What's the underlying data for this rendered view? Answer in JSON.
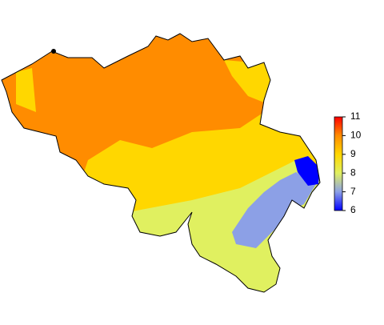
{
  "colorbar": {
    "lim": [
      6,
      11
    ],
    "ticks": [
      6,
      7,
      8,
      9,
      10,
      11
    ],
    "colors": [
      "#0000ff",
      "#8ca0e6",
      "#e0f060",
      "#ffd700",
      "#ff8c00",
      "#ff0000"
    ]
  }
}
